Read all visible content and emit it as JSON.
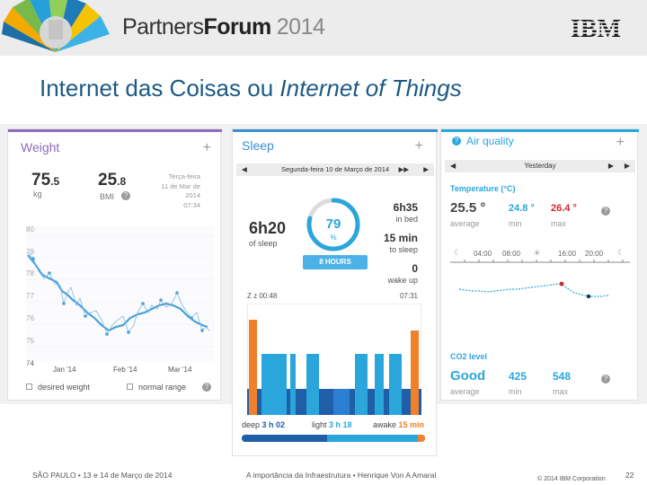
{
  "header": {
    "brand_part1": "Partners",
    "brand_part2": "Forum",
    "brand_year": "2014",
    "company": "IBM"
  },
  "slide_title_plain": "Internet das Coisas ou ",
  "slide_title_italic": "Internet of Things",
  "weight": {
    "title": "Weight",
    "add": "+",
    "weight_value": "75",
    "weight_decimal": ".5",
    "weight_unit": "kg",
    "bmi_value": "25",
    "bmi_decimal": ".8",
    "bmi_label": "BMI",
    "help": "?",
    "date_line1": "Terça-feira",
    "date_line2": "11 de Mar de",
    "date_line3": "2014",
    "date_line4": "07:34",
    "y_ticks": [
      "80",
      "79",
      "78",
      "77",
      "76",
      "75",
      "74"
    ],
    "x_ticks": [
      "Jan '14",
      "Feb '14",
      "Mar '14"
    ],
    "legend_desired": "desired weight",
    "legend_normal": "normal range"
  },
  "sleep": {
    "title": "Sleep",
    "add": "+",
    "date": "Segunda-feira 10 de Março de 2014",
    "duration": "6h20",
    "duration_label": "of sleep",
    "score": "79",
    "score_unit": "%",
    "target": "8 HOURS",
    "in_bed": "6h35",
    "in_bed_label": "in bed",
    "to_sleep": "15 min",
    "to_sleep_label": "to sleep",
    "wake_up": "0",
    "wake_up_label": "wake up",
    "start_time": "Z z 00:48",
    "end_time": "07:31",
    "deep_label": "deep",
    "deep_value": "3 h 02",
    "light_label": "light",
    "light_value": "3 h 18",
    "awake_label": "awake",
    "awake_value": "15 min",
    "score_fraction": 0.79
  },
  "air": {
    "title": "Air quality",
    "help": "?",
    "add": "+",
    "date": "Yesterday",
    "temp_header": "Temperature (°C)",
    "average": "25.5 °",
    "average_label": "average",
    "min": "24.8 °",
    "min_label": "min",
    "max": "26.4 °",
    "max_label": "max",
    "times": [
      "04:00",
      "08:00",
      "16:00",
      "20:00"
    ],
    "co2_header": "CO2 level",
    "co2_average": "Good",
    "co2_average_label": "average",
    "co2_min": "425",
    "co2_min_label": "min",
    "co2_max": "548",
    "co2_max_label": "max"
  },
  "footer": {
    "left": "SÃO PAULO • 13 e 14 de Março de 2014",
    "center": "A importância da Infraestrutura • Henrique Von A Amaral",
    "copyright": "© 2014 IBM Corporation",
    "page": "22"
  },
  "colors": {
    "title_blue": "#1d5a86",
    "weight_purple": "#8e6bbf",
    "sleep_blue": "#3a8fd6",
    "orange": "#f0802a",
    "air_teal": "#2aa6dd",
    "red": "#d0282b"
  }
}
